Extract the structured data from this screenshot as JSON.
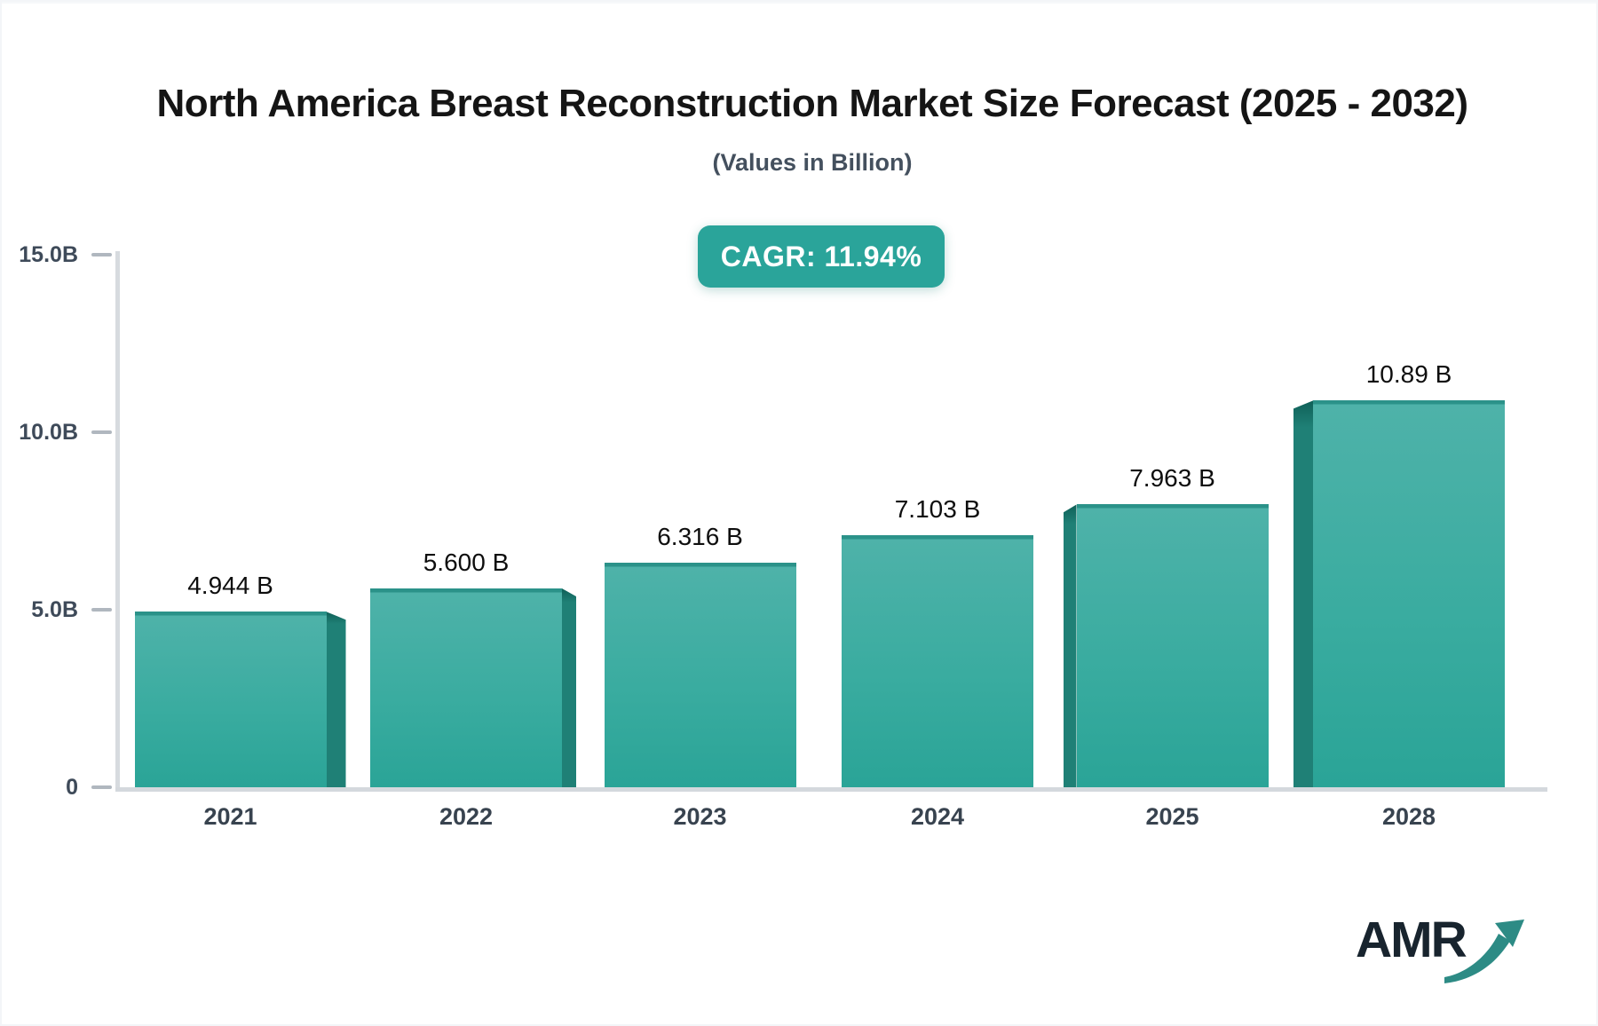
{
  "title": "North America Breast Reconstruction Market Size Forecast (2025 - 2032)",
  "subtitle": "(Values in Billion)",
  "badge": {
    "label": "CAGR: 11.94%"
  },
  "logo": {
    "text": "AMR"
  },
  "chart_data": {
    "type": "bar",
    "title": "North America Breast Reconstruction Market Size Forecast (2025 - 2032)",
    "subtitle": "(Values in Billion)",
    "unit": "Billion",
    "cagr": "CAGR: 11.94%",
    "categories": [
      "2021",
      "2022",
      "2023",
      "2024",
      "2025",
      "2028"
    ],
    "values": [
      4.944,
      5.6,
      6.316,
      7.103,
      7.963,
      10.89
    ],
    "bar_labels": [
      "4.944 B",
      "5.600 B",
      "6.316 B",
      "7.103 B",
      "7.963 B",
      "10.89 B"
    ],
    "ylim": [
      0,
      15
    ],
    "yticks": [
      {
        "value": 0,
        "label": "0"
      },
      {
        "value": 5,
        "label": "5.0B"
      },
      {
        "value": 10,
        "label": "10.0B"
      },
      {
        "value": 15,
        "label": "15.0B"
      }
    ],
    "grid": false,
    "legend": false,
    "colors": {
      "bar_face_top": "#4eb2a9",
      "bar_face_bottom": "#2aa497",
      "bar_side": "#1f8076",
      "bar_top_edge": "#2b9289",
      "axis": "#d4d8dd",
      "badge_bg": "#2aa49a",
      "logo_arrow": "#2d8b85"
    }
  }
}
